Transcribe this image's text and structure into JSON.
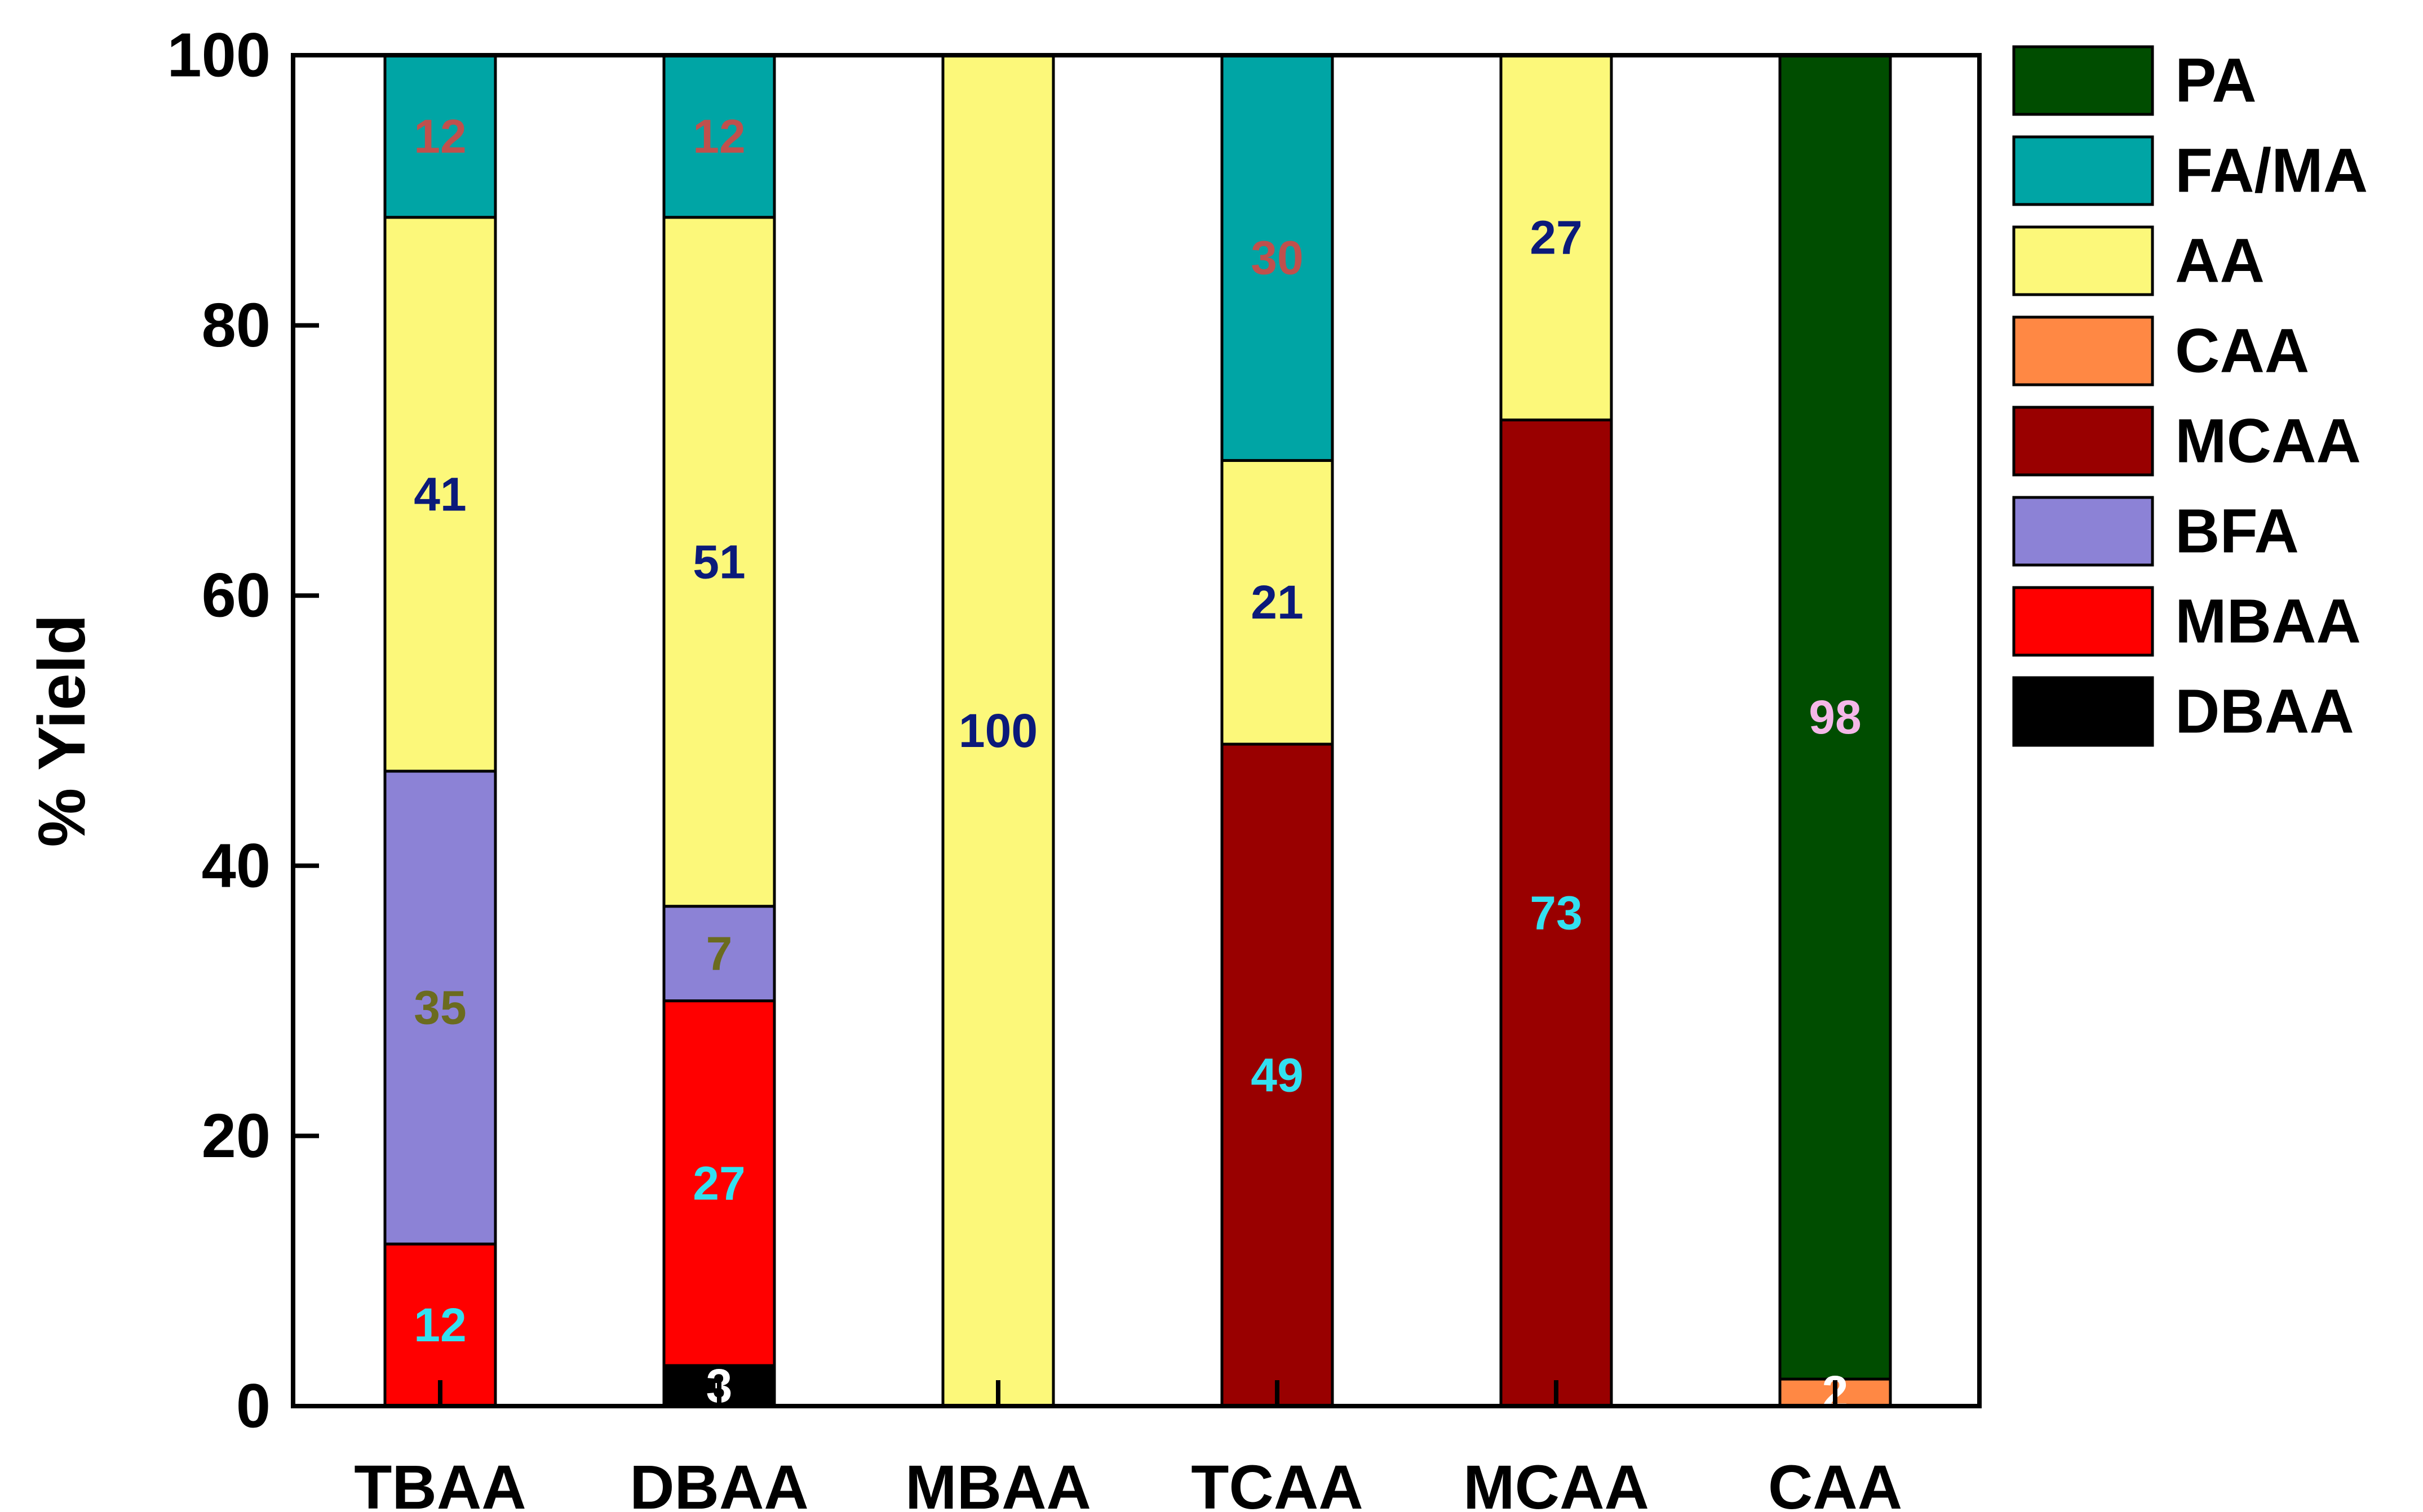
{
  "chart_data": {
    "type": "bar",
    "stacked": true,
    "title": "",
    "xlabel": "",
    "ylabel": "% Yield",
    "ylim": [
      0,
      100
    ],
    "yticks": [
      0,
      20,
      40,
      60,
      80,
      100
    ],
    "grid": false,
    "legend_position": "right",
    "categories": [
      "TBAA",
      "DBAA",
      "MBAA",
      "TCAA",
      "MCAA",
      "CAA"
    ],
    "series": [
      {
        "name": "DBAA",
        "color": "#000000",
        "values": [
          0,
          3,
          0,
          0,
          0,
          0
        ]
      },
      {
        "name": "MBAA",
        "color": "#ff0000",
        "values": [
          12,
          27,
          0,
          0,
          0,
          0
        ]
      },
      {
        "name": "BFA",
        "color": "#8c82d6",
        "values": [
          35,
          7,
          0,
          0,
          0,
          0
        ]
      },
      {
        "name": "MCAA",
        "color": "#990000",
        "values": [
          0,
          0,
          0,
          49,
          73,
          0
        ]
      },
      {
        "name": "CAA",
        "color": "#ff8844",
        "values": [
          0,
          0,
          0,
          0,
          0,
          2
        ]
      },
      {
        "name": "AA",
        "color": "#fcf87a",
        "values": [
          41,
          51,
          100,
          21,
          27,
          0
        ]
      },
      {
        "name": "FA/MA",
        "color": "#00a5a5",
        "values": [
          12,
          12,
          0,
          30,
          0,
          0
        ]
      },
      {
        "name": "PA",
        "color": "#004d00",
        "values": [
          0,
          0,
          0,
          0,
          0,
          98
        ]
      }
    ],
    "data_labels": [
      {
        "category": "TBAA",
        "series": "FA/MA",
        "text": "12",
        "color": "#c0504d"
      },
      {
        "category": "TBAA",
        "series": "AA",
        "text": "41",
        "color": "#0b1a7a"
      },
      {
        "category": "TBAA",
        "series": "BFA",
        "text": "35",
        "color": "#6b6b1f"
      },
      {
        "category": "TBAA",
        "series": "MBAA",
        "text": "12",
        "color": "#33e0f0"
      },
      {
        "category": "DBAA",
        "series": "FA/MA",
        "text": "12",
        "color": "#c0504d"
      },
      {
        "category": "DBAA",
        "series": "AA",
        "text": "51",
        "color": "#0b1a7a"
      },
      {
        "category": "DBAA",
        "series": "BFA",
        "text": "7",
        "color": "#6b6b1f"
      },
      {
        "category": "DBAA",
        "series": "MBAA",
        "text": "27",
        "color": "#33e0f0"
      },
      {
        "category": "DBAA",
        "series": "DBAA",
        "text": "3",
        "color": "#ffffff"
      },
      {
        "category": "MBAA",
        "series": "AA",
        "text": "100",
        "color": "#0b1a7a"
      },
      {
        "category": "TCAA",
        "series": "FA/MA",
        "text": "30",
        "color": "#c0504d"
      },
      {
        "category": "TCAA",
        "series": "AA",
        "text": "21",
        "color": "#0b1a7a"
      },
      {
        "category": "TCAA",
        "series": "MCAA",
        "text": "49",
        "color": "#33e0f0"
      },
      {
        "category": "MCAA",
        "series": "AA",
        "text": "27",
        "color": "#0b1a7a"
      },
      {
        "category": "MCAA",
        "series": "MCAA",
        "text": "73",
        "color": "#33e0f0"
      },
      {
        "category": "CAA",
        "series": "PA",
        "text": "98",
        "color": "#f4b8e8"
      },
      {
        "category": "CAA",
        "series": "CAA",
        "text": "2",
        "color": "#ffffff"
      }
    ],
    "legend": [
      "PA",
      "FA/MA",
      "AA",
      "CAA",
      "MCAA",
      "BFA",
      "MBAA",
      "DBAA"
    ]
  }
}
